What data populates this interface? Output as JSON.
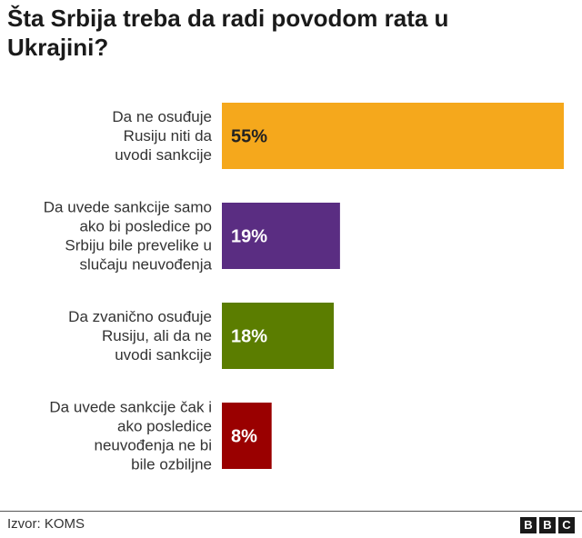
{
  "title": "Šta Srbija treba da radi povodom rata u Ukrajini?",
  "source": "Izvor: KOMS",
  "logo_letters": [
    "B",
    "B",
    "C"
  ],
  "chart_data": {
    "type": "bar",
    "orientation": "horizontal",
    "title": "Šta Srbija treba da radi povodom rata u Ukrajini?",
    "categories": [
      [
        "Da ne osuđuje",
        "Rusiju niti da",
        "uvodi sankcije"
      ],
      [
        "Da uvede sankcije samo",
        "ako bi posledice po",
        "Srbiju bile prevelike u",
        "slučaju neuvođenja"
      ],
      [
        "Da zvanično osuđuje",
        "Rusiju, ali da ne",
        "uvodi sankcije"
      ],
      [
        "Da uvede sankcije čak i",
        "ako posledice",
        "neuvođenja ne bi",
        "bile ozbiljne"
      ]
    ],
    "values": [
      55,
      19,
      18,
      8
    ],
    "value_labels": [
      "55%",
      "19%",
      "18%",
      "8%"
    ],
    "colors": [
      "#f5a81c",
      "#5a2d82",
      "#5b7d00",
      "#9a0000"
    ],
    "label_colors": [
      "#222222",
      "#ffffff",
      "#ffffff",
      "#ffffff"
    ],
    "xlim": [
      0,
      55
    ],
    "grid": false,
    "legend": "none"
  }
}
